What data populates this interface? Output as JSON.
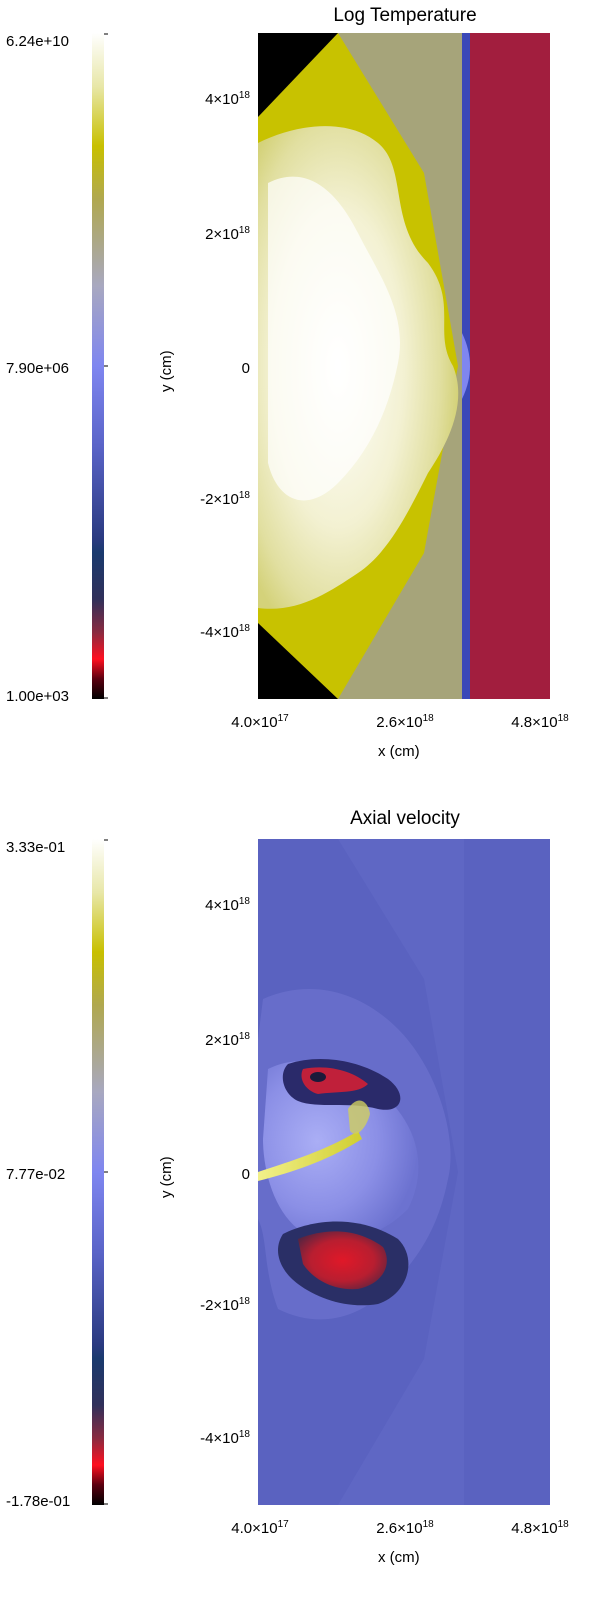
{
  "chart_data": [
    {
      "type": "heatmap",
      "title": "Log Temperature",
      "xlabel": "x (cm)",
      "ylabel": "y (cm)",
      "colorbar": {
        "max_label": "6.24e+10",
        "mid_label": "7.90e+06",
        "min_label": "1.00e+03"
      },
      "xticks": [
        "4.0×10",
        "2.6×10",
        "4.8×10"
      ],
      "xtick_exp": "18",
      "xtick_exp_first": "17",
      "yticks": [
        "4×10",
        "2×10",
        "0",
        "-2×10",
        "-4×10"
      ],
      "ytick_exp": "18",
      "xlim": [
        4e+17,
        4.8e+18
      ],
      "ylim": [
        -5e+18,
        5e+18
      ]
    },
    {
      "type": "heatmap",
      "title": "Axial velocity",
      "xlabel": "x (cm)",
      "ylabel": "y (cm)",
      "colorbar": {
        "max_label": "3.33e-01",
        "mid_label": "7.77e-02",
        "min_label": "-1.78e-01"
      },
      "xticks": [
        "4.0×10",
        "2.6×10",
        "4.8×10"
      ],
      "xtick_exp": "18",
      "xtick_exp_first": "17",
      "yticks": [
        "4×10",
        "2×10",
        "0",
        "-2×10",
        "-4×10"
      ],
      "ytick_exp": "18",
      "xlim": [
        4e+17,
        4.8e+18
      ],
      "ylim": [
        -5e+18,
        5e+18
      ]
    }
  ]
}
